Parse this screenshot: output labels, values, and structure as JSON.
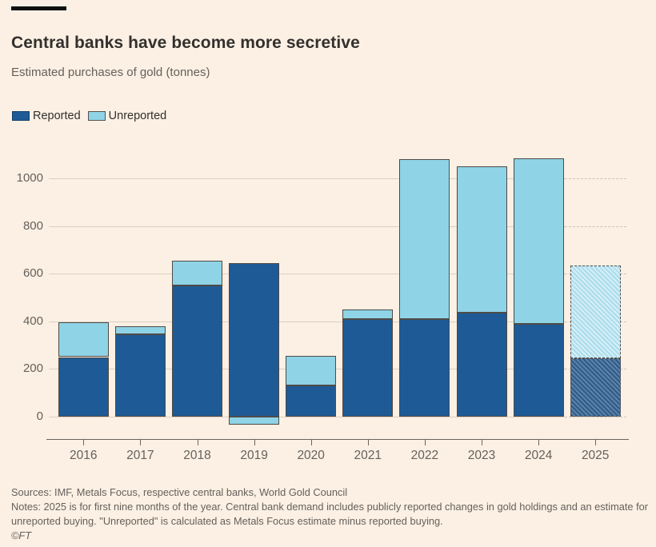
{
  "header": {
    "title": "Central banks have become more secretive",
    "subtitle": "Estimated purchases of gold (tonnes)"
  },
  "chart_data": {
    "type": "bar",
    "stacked": true,
    "title": "Central banks have become more secretive",
    "subtitle": "Estimated purchases of gold (tonnes)",
    "unit": "tonnes",
    "categories": [
      "2016",
      "2017",
      "2018",
      "2019",
      "2020",
      "2021",
      "2022",
      "2023",
      "2024",
      "2025"
    ],
    "series": [
      {
        "name": "Reported",
        "color": "#1E5A96",
        "values": [
          250,
          345,
          550,
          645,
          130,
          410,
          410,
          435,
          390,
          245
        ]
      },
      {
        "name": "Unreported",
        "color": "#8FD3E6",
        "values": [
          145,
          35,
          105,
          -35,
          125,
          40,
          670,
          615,
          695,
          390
        ]
      }
    ],
    "stack_totals": [
      395,
      380,
      655,
      610,
      255,
      450,
      1080,
      1050,
      1085,
      635
    ],
    "hatched_categories": [
      "2025"
    ],
    "yticks": [
      0,
      200,
      400,
      600,
      800,
      1000
    ],
    "ylim": [
      -95,
      1115
    ],
    "grid": "horizontal",
    "grid_dashed_region": "right of 2024 (2025 estimate band)",
    "legend_position": "top-left",
    "xlabel": "",
    "ylabel": ""
  },
  "footer": {
    "sources": "Sources: IMF, Metals Focus, respective central banks, World Gold Council",
    "notes": "Notes: 2025 is for first nine months of the year. Central bank demand includes publicly reported changes in gold holdings and an estimate for unreported buying. \"Unreported\" is calculated as Metals Focus estimate minus reported buying.",
    "credit": "©FT"
  },
  "colors": {
    "background": "#FBF0E3",
    "reported": "#1E5A96",
    "unreported": "#8FD3E6",
    "gridline": "#D9CFC4",
    "axis": "#6B6560",
    "title_text": "#33302E",
    "muted_text": "#66605C",
    "top_rule": "#111111"
  }
}
